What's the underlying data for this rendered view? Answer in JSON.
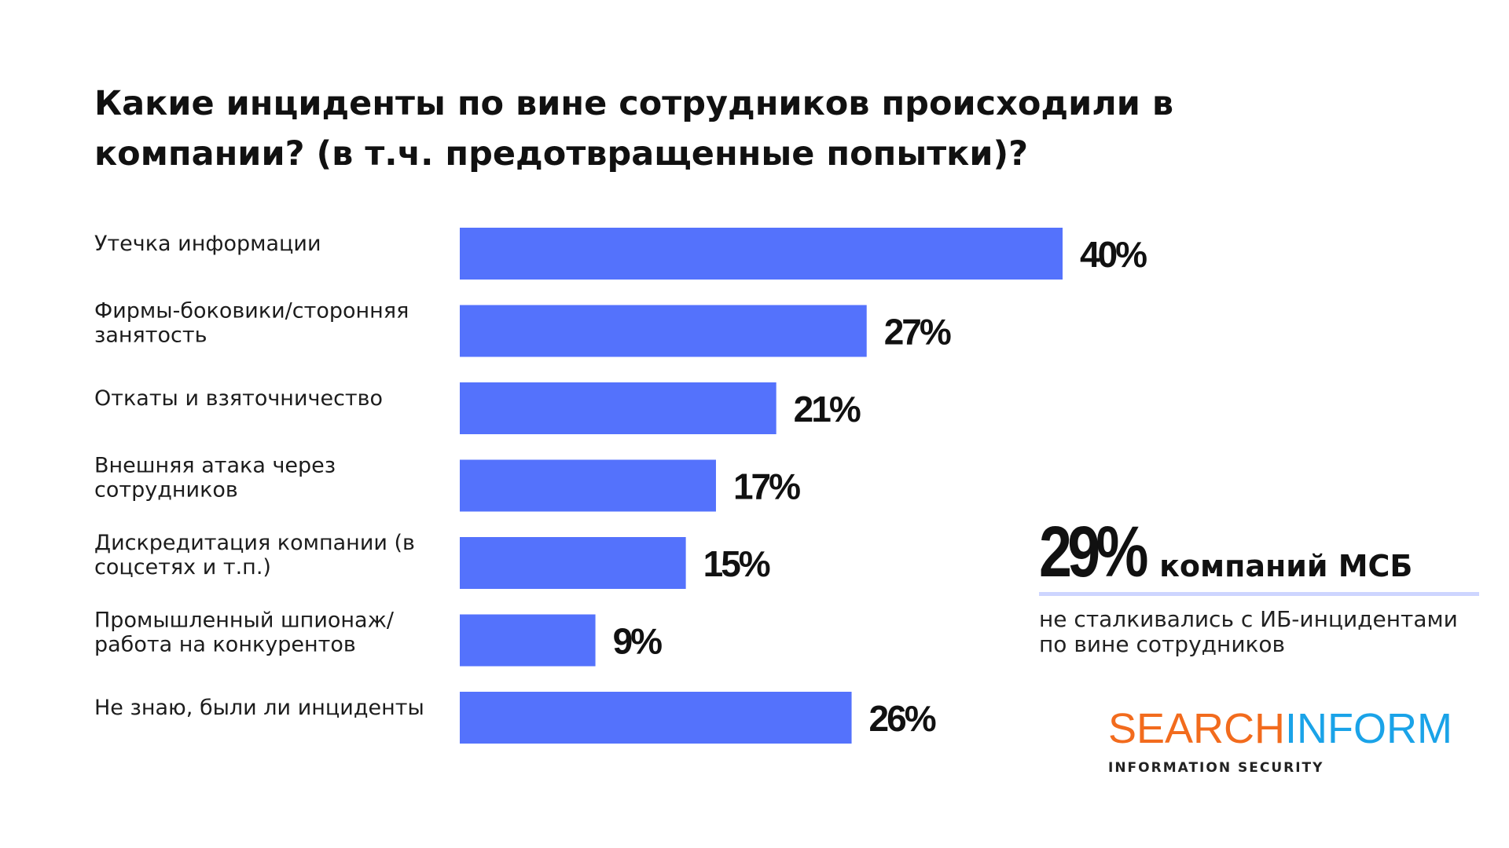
{
  "title": {
    "line1": "Какие инциденты по вине сотрудников происходили в",
    "line2": "компании? (в т.ч. предотвращенные попытки)?"
  },
  "chart_data": {
    "type": "bar",
    "orientation": "horizontal",
    "title": "Какие инциденты по вине сотрудников происходили в компании? (в т.ч. предотвращенные попытки)?",
    "categories": [
      [
        "Утечка информации"
      ],
      [
        "Фирмы-боковики/сторонняя",
        "занятость"
      ],
      [
        "Откаты и взяточничество"
      ],
      [
        "Внешняя атака через",
        "сотрудников"
      ],
      [
        "Дискредитация компании (в",
        "соцсетях и т.п.)"
      ],
      [
        "Промышленный шпионаж/",
        "работа на конкурентов"
      ],
      [
        "Не знаю, были ли инциденты"
      ]
    ],
    "values": [
      40,
      27,
      21,
      17,
      15,
      9,
      26
    ],
    "value_labels": [
      "40%",
      "27%",
      "21%",
      "17%",
      "15%",
      "9%",
      "26%"
    ],
    "unit": "%",
    "xlim": [
      0,
      40
    ],
    "bar_color": "#5472fc",
    "grid": false,
    "legend": "none"
  },
  "callout": {
    "big_value": "29%",
    "big_label": "компаний МСБ",
    "text_line1": "не сталкивались с ИБ-инцидентами",
    "text_line2": "по вине сотрудников",
    "rule_color": "#cdd5ff"
  },
  "logo": {
    "part1": "SEARCH",
    "part2": "INFORM",
    "tagline": "INFORMATION SECURITY",
    "color1": "#f26b1d",
    "color2": "#1aa3e8"
  }
}
